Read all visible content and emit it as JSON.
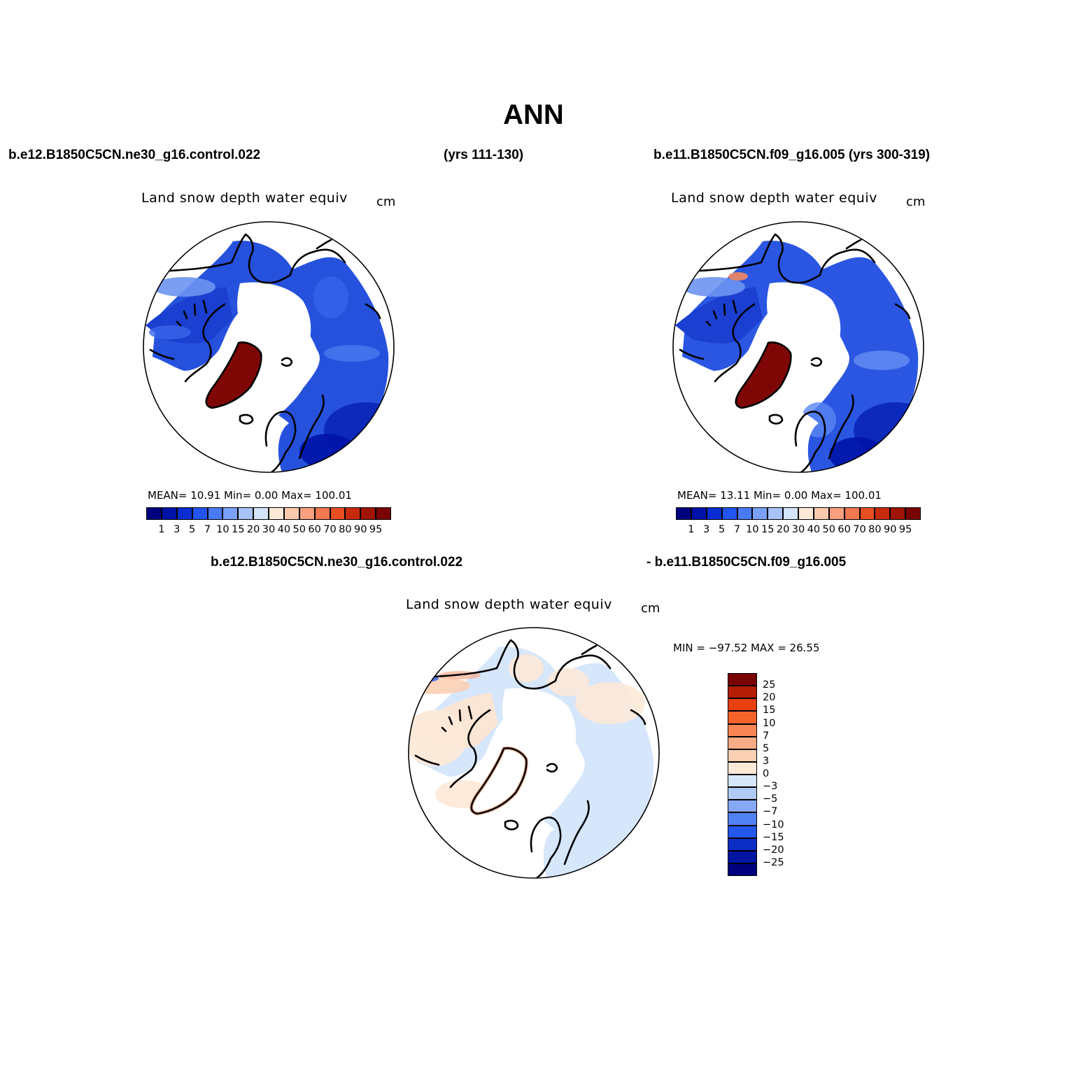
{
  "title": "ANN",
  "header": {
    "case1": "b.e12.B1850C5CN.ne30_g16.control.022",
    "case1_years": "(yrs 111-130)",
    "case2": "b.e11.B1850C5CN.f09_g16.005 (yrs 300-319)",
    "diff_case1": "b.e12.B1850C5CN.ne30_g16.control.022",
    "diff_case2": "- b.e11.B1850C5CN.f09_g16.005"
  },
  "panels": [
    {
      "variable": "Land snow depth water equiv",
      "units": "cm",
      "stats_text": "MEAN=   10.91   Min=     0.00   Max=  100.01",
      "mean": 10.91,
      "min": 0.0,
      "max": 100.01
    },
    {
      "variable": "Land snow depth water equiv",
      "units": "cm",
      "stats_text": "MEAN=   13.11   Min=     0.00   Max=  100.01",
      "mean": 13.11,
      "min": 0.0,
      "max": 100.01
    }
  ],
  "difference": {
    "variable": "Land snow depth water equiv",
    "units": "cm",
    "stats_text": "MIN = −97.52  MAX =   26.55",
    "min": -97.52,
    "max": 26.55
  },
  "colorbars": {
    "abs_labels": [
      "1",
      "3",
      "5",
      "7",
      "10",
      "15",
      "20",
      "30",
      "40",
      "50",
      "60",
      "70",
      "80",
      "90",
      "95"
    ],
    "abs_colors": [
      "#00007f",
      "#0013a8",
      "#0a2dd2",
      "#2255f0",
      "#4a7bf7",
      "#7aa0f8",
      "#a8c3f8",
      "#d3e4fb",
      "#fde9d8",
      "#fbc9ad",
      "#f7a07d",
      "#f27850",
      "#e84e22",
      "#c82a0e",
      "#9f1406",
      "#7a0403"
    ],
    "diff_labels": [
      "25",
      "20",
      "15",
      "10",
      "7",
      "5",
      "3",
      "0",
      "−3",
      "−5",
      "−7",
      "−10",
      "−15",
      "−20",
      "−25"
    ],
    "diff_colors": [
      "#7a0403",
      "#b51d07",
      "#e8400f",
      "#f5622a",
      "#f88552",
      "#f9ab85",
      "#fbd0b4",
      "#fde9d8",
      "#d6e6fb",
      "#b0cbf6",
      "#86a9f6",
      "#5082f3",
      "#2457ec",
      "#0b2fc6",
      "#0015a2",
      "#00007f"
    ]
  }
}
